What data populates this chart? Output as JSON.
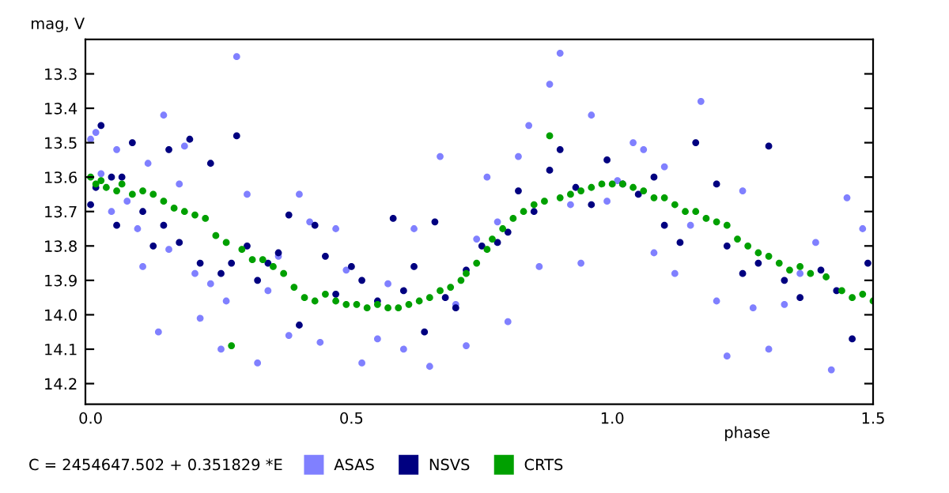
{
  "chart_data": {
    "type": "scatter",
    "xlabel": "phase",
    "ylabel": "mag, V",
    "annotations": [
      "C = 2454647.502 + 0.351829 *E"
    ],
    "xlim": [
      -0.01,
      1.5
    ],
    "xticks": [
      {
        "value": 0,
        "label": "0.0"
      },
      0.5,
      {
        "value": 1,
        "label": "1.0"
      },
      1.5
    ],
    "ylim": [
      14.26,
      13.2
    ],
    "yticks": [
      13.3,
      13.4,
      13.5,
      13.6,
      13.7,
      13.8,
      13.9,
      {
        "value": 14,
        "label": "14.0"
      },
      14.1,
      14.2
    ],
    "grid": false,
    "legend": "bottom",
    "marker": "circle",
    "series": [
      {
        "name": "ASAS",
        "color": "#8080ff",
        "x": [
          0.0,
          0.01,
          0.02,
          0.04,
          0.05,
          0.07,
          0.09,
          0.1,
          0.11,
          0.13,
          0.14,
          0.15,
          0.17,
          0.18,
          0.2,
          0.21,
          0.23,
          0.25,
          0.26,
          0.28,
          0.3,
          0.32,
          0.34,
          0.36,
          0.38,
          0.4,
          0.42,
          0.44,
          0.47,
          0.49,
          0.52,
          0.55,
          0.57,
          0.6,
          0.62,
          0.65,
          0.67,
          0.7,
          0.72,
          0.74,
          0.76,
          0.78,
          0.8,
          0.82,
          0.84,
          0.86,
          0.88,
          0.9,
          0.92,
          0.94,
          0.96,
          0.99,
          1.01,
          1.04,
          1.06,
          1.08,
          1.1,
          1.12,
          1.15,
          1.17,
          1.2,
          1.22,
          1.25,
          1.27,
          1.3,
          1.33,
          1.36,
          1.39,
          1.42,
          1.45,
          1.48
        ],
        "values": [
          13.49,
          13.47,
          13.59,
          13.7,
          13.52,
          13.67,
          13.75,
          13.86,
          13.56,
          14.05,
          13.42,
          13.81,
          13.62,
          13.51,
          13.88,
          14.01,
          13.91,
          14.1,
          13.96,
          13.25,
          13.65,
          14.14,
          13.93,
          13.83,
          14.06,
          13.65,
          13.73,
          14.08,
          13.75,
          13.87,
          14.14,
          14.07,
          13.91,
          14.1,
          13.75,
          14.15,
          13.54,
          13.97,
          14.09,
          13.78,
          13.6,
          13.73,
          14.02,
          13.54,
          13.45,
          13.86,
          13.33,
          13.24,
          13.68,
          13.85,
          13.42,
          13.67,
          13.61,
          13.5,
          13.52,
          13.82,
          13.57,
          13.88,
          13.74,
          13.38,
          13.96,
          14.12,
          13.64,
          13.98,
          14.1,
          13.97,
          13.88,
          13.79,
          14.16,
          13.66,
          13.75
        ]
      },
      {
        "name": "NSVS",
        "color": "#000080",
        "x": [
          0.0,
          0.01,
          0.02,
          0.04,
          0.05,
          0.06,
          0.08,
          0.1,
          0.12,
          0.14,
          0.15,
          0.17,
          0.19,
          0.21,
          0.23,
          0.25,
          0.27,
          0.28,
          0.3,
          0.32,
          0.34,
          0.36,
          0.38,
          0.4,
          0.43,
          0.45,
          0.47,
          0.5,
          0.52,
          0.55,
          0.58,
          0.6,
          0.62,
          0.64,
          0.66,
          0.68,
          0.7,
          0.72,
          0.75,
          0.78,
          0.8,
          0.82,
          0.85,
          0.88,
          0.9,
          0.93,
          0.96,
          0.99,
          1.02,
          1.05,
          1.08,
          1.1,
          1.13,
          1.16,
          1.2,
          1.22,
          1.25,
          1.28,
          1.3,
          1.33,
          1.36,
          1.4,
          1.43,
          1.46,
          1.49
        ],
        "values": [
          13.68,
          13.63,
          13.45,
          13.6,
          13.74,
          13.6,
          13.5,
          13.7,
          13.8,
          13.74,
          13.52,
          13.79,
          13.49,
          13.85,
          13.56,
          13.88,
          13.85,
          13.48,
          13.8,
          13.9,
          13.85,
          13.82,
          13.71,
          14.03,
          13.74,
          13.83,
          13.94,
          13.86,
          13.9,
          13.96,
          13.72,
          13.93,
          13.86,
          14.05,
          13.73,
          13.95,
          13.98,
          13.87,
          13.8,
          13.79,
          13.76,
          13.64,
          13.7,
          13.58,
          13.52,
          13.63,
          13.68,
          13.55,
          13.62,
          13.65,
          13.6,
          13.74,
          13.79,
          13.5,
          13.62,
          13.8,
          13.88,
          13.85,
          13.51,
          13.9,
          13.95,
          13.87,
          13.93,
          14.07,
          13.85
        ]
      },
      {
        "name": "CRTS",
        "color": "#00a000",
        "x": [
          0.0,
          0.01,
          0.02,
          0.03,
          0.05,
          0.06,
          0.08,
          0.1,
          0.12,
          0.14,
          0.16,
          0.18,
          0.2,
          0.22,
          0.24,
          0.26,
          0.27,
          0.29,
          0.31,
          0.33,
          0.35,
          0.37,
          0.39,
          0.41,
          0.43,
          0.45,
          0.47,
          0.49,
          0.51,
          0.53,
          0.55,
          0.57,
          0.59,
          0.61,
          0.63,
          0.65,
          0.67,
          0.69,
          0.71,
          0.72,
          0.74,
          0.76,
          0.77,
          0.79,
          0.81,
          0.83,
          0.85,
          0.87,
          0.88,
          0.9,
          0.92,
          0.94,
          0.96,
          0.98,
          1.0,
          1.02,
          1.04,
          1.06,
          1.08,
          1.1,
          1.12,
          1.14,
          1.16,
          1.18,
          1.2,
          1.22,
          1.24,
          1.26,
          1.28,
          1.3,
          1.32,
          1.34,
          1.36,
          1.38,
          1.41,
          1.44,
          1.46,
          1.48,
          1.5
        ],
        "values": [
          13.6,
          13.62,
          13.61,
          13.63,
          13.64,
          13.62,
          13.65,
          13.64,
          13.65,
          13.67,
          13.69,
          13.7,
          13.71,
          13.72,
          13.77,
          13.79,
          14.09,
          13.81,
          13.84,
          13.84,
          13.86,
          13.88,
          13.92,
          13.95,
          13.96,
          13.94,
          13.96,
          13.97,
          13.97,
          13.98,
          13.97,
          13.98,
          13.98,
          13.97,
          13.96,
          13.95,
          13.93,
          13.92,
          13.9,
          13.88,
          13.85,
          13.81,
          13.78,
          13.75,
          13.72,
          13.7,
          13.68,
          13.67,
          13.48,
          13.66,
          13.65,
          13.64,
          13.63,
          13.62,
          13.62,
          13.62,
          13.63,
          13.64,
          13.66,
          13.66,
          13.68,
          13.7,
          13.7,
          13.72,
          13.73,
          13.74,
          13.78,
          13.8,
          13.82,
          13.83,
          13.85,
          13.87,
          13.86,
          13.88,
          13.89,
          13.93,
          13.95,
          13.94,
          13.96
        ]
      }
    ]
  }
}
